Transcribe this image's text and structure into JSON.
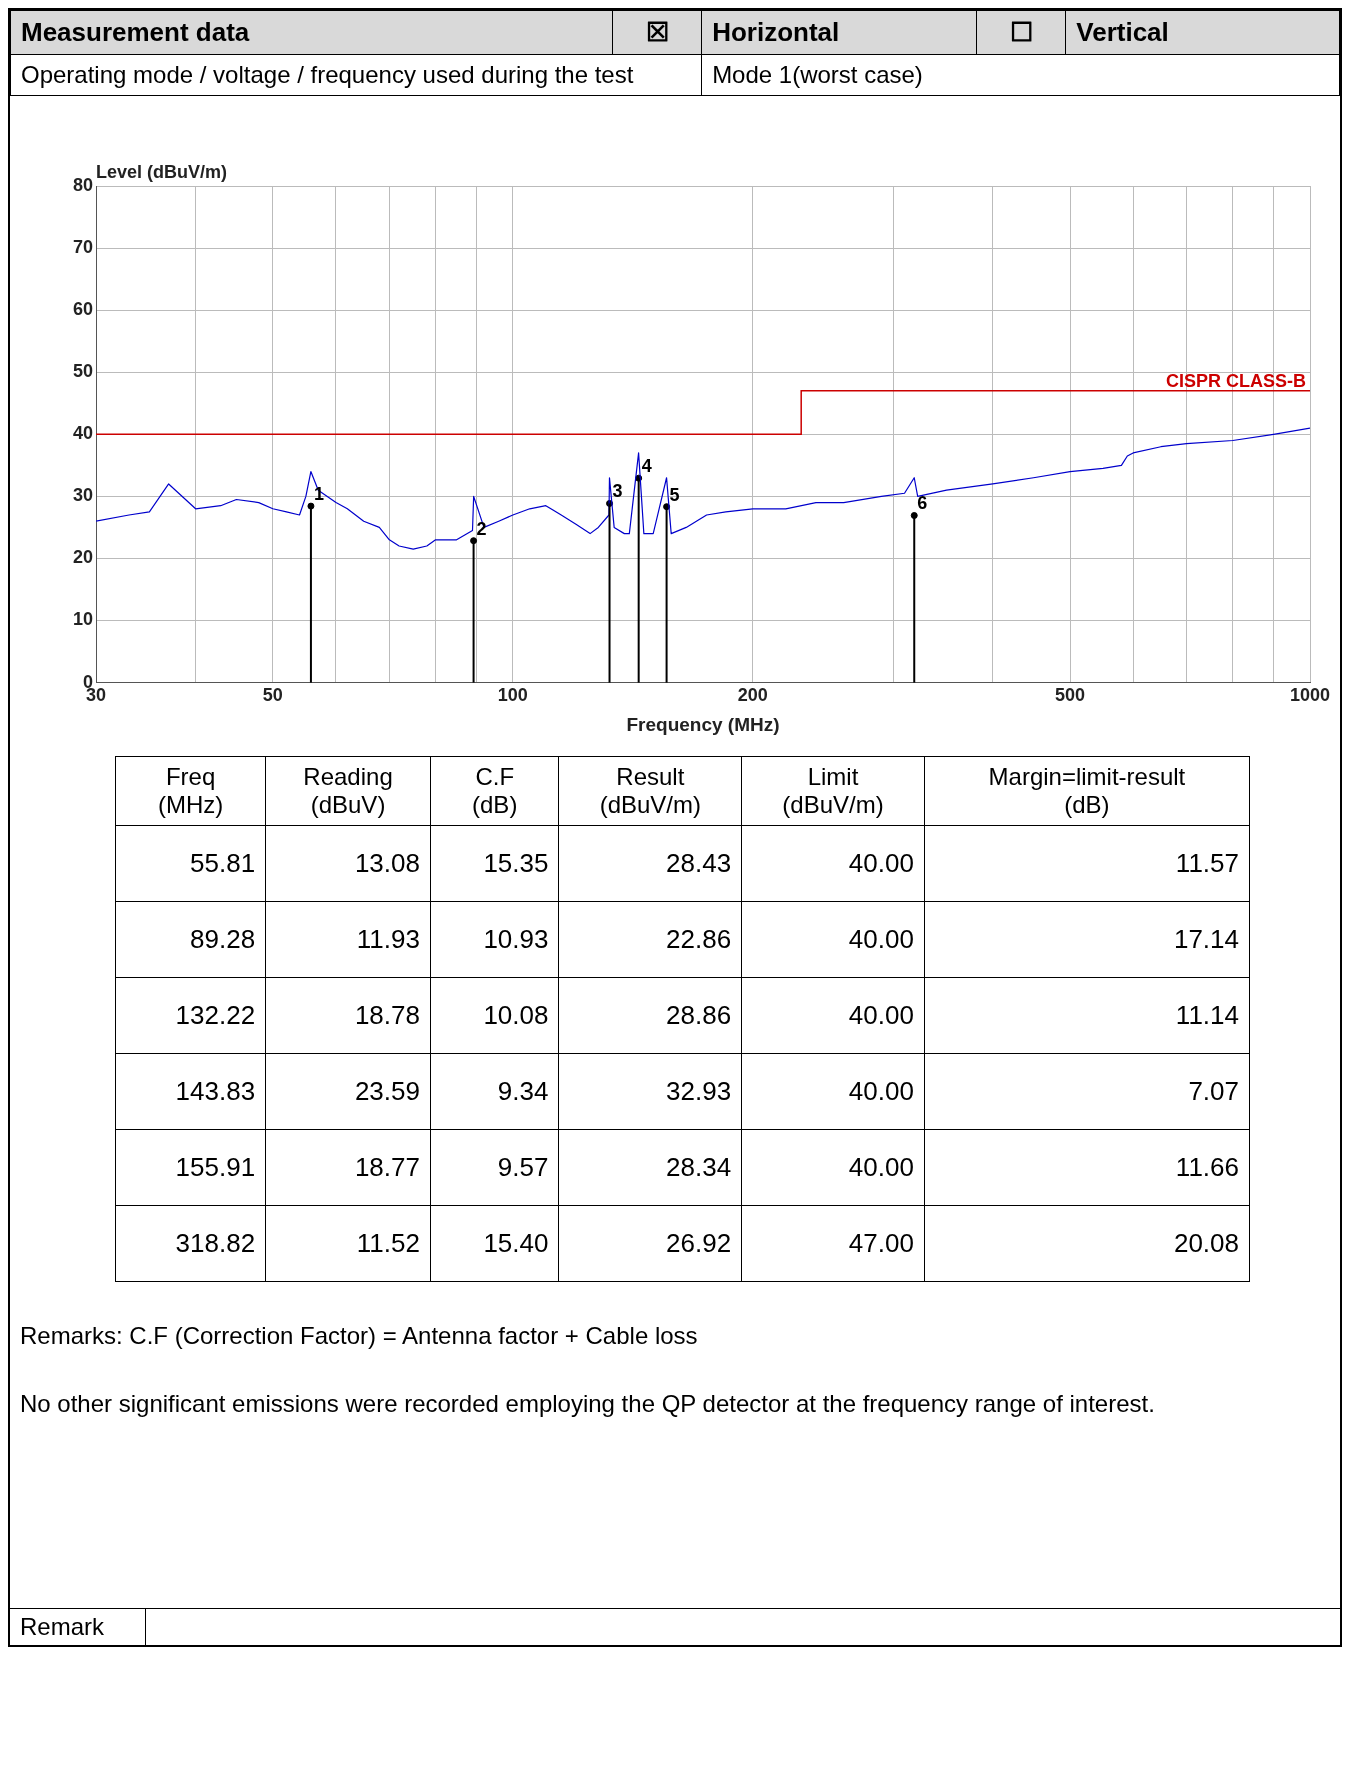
{
  "chart_data": [
    {
      "type": "other",
      "title": "Measurement data",
      "annotations": [
        "☒",
        "Horizontal",
        "☐",
        "Vertical",
        "Operating mode / voltage / frequency used during the test",
        "Mode 1(worst case)"
      ]
    },
    {
      "type": "line",
      "xlabel": "Frequency (MHz)",
      "ylabel": "Level (dBuV/m)",
      "log": "x",
      "grid": true,
      "legend": false,
      "marker": "none",
      "line_style": "solid",
      "xlim": [
        30,
        1000
      ],
      "ylim": [
        0,
        80
      ],
      "xticks": [
        30,
        {
          "value": 40,
          "label": null
        },
        50,
        {
          "value": 60,
          "label": null
        },
        {
          "value": 70,
          "label": null
        },
        {
          "value": 80,
          "label": null
        },
        {
          "value": 90,
          "label": null
        },
        100,
        200,
        {
          "value": 300,
          "label": null
        },
        {
          "value": 400,
          "label": null
        },
        500,
        {
          "value": 600,
          "label": null
        },
        {
          "value": 700,
          "label": null
        },
        {
          "value": 800,
          "label": null
        },
        {
          "value": 900,
          "label": null
        },
        1000
      ],
      "yticks": [
        0,
        10,
        20,
        30,
        40,
        50,
        60,
        70,
        80
      ],
      "series": [
        {
          "type": "line",
          "color": "#0000cc",
          "x": [
            30,
            33,
            35,
            37,
            40,
            43,
            45,
            48,
            50,
            52,
            54,
            55,
            55.8,
            57,
            60,
            62,
            65,
            68,
            70,
            72,
            75,
            78,
            80,
            85,
            89,
            89.3,
            92,
            96,
            100,
            105,
            110,
            115,
            120,
            125,
            128,
            132,
            132.2,
            134,
            138,
            140,
            143.8,
            146,
            150,
            155.9,
            158,
            165,
            175,
            185,
            200,
            220,
            240,
            260,
            290,
            310,
            318.8,
            322,
            350,
            400,
            450,
            500,
            550,
            580,
            590,
            600,
            650,
            700,
            800,
            900,
            1000
          ],
          "values": [
            26,
            27,
            27.5,
            32,
            28,
            28.5,
            29.5,
            29,
            28,
            27.5,
            27,
            30,
            34,
            31,
            29,
            28,
            26,
            25,
            23,
            22,
            21.5,
            22,
            23,
            23,
            24.5,
            30,
            25,
            26,
            27,
            28,
            28.5,
            27,
            25.5,
            24,
            25,
            27,
            33,
            25,
            24,
            24,
            37,
            24,
            24,
            33,
            24,
            25,
            27,
            27.5,
            28,
            28,
            29,
            29,
            30,
            30.5,
            33,
            30,
            31,
            32,
            33,
            34,
            34.5,
            35,
            36.5,
            37,
            38,
            38.5,
            39,
            40,
            41
          ]
        },
        {
          "type": "step",
          "name": "CISPR CLASS-B",
          "color": "#cc0000",
          "x": [
            30,
            230,
            1000
          ],
          "values": [
            40,
            47,
            47
          ]
        },
        {
          "type": "lollipop",
          "marker": "circle",
          "color": "#000000",
          "x": [
            55.81,
            89.28,
            132.22,
            143.83,
            155.91,
            318.82
          ],
          "values": [
            28.43,
            22.86,
            28.86,
            32.93,
            28.34,
            26.92
          ]
        }
      ],
      "annotations": [
        {
          "text": "1",
          "x": 55.81,
          "y": 28.43
        },
        {
          "text": "2",
          "x": 89.28,
          "y": 22.86
        },
        {
          "text": "3",
          "x": 132.22,
          "y": 28.86
        },
        {
          "text": "4",
          "x": 143.83,
          "y": 32.93
        },
        {
          "text": "5",
          "x": 155.91,
          "y": 28.34
        },
        {
          "text": "6",
          "x": 318.82,
          "y": 26.92
        }
      ]
    },
    {
      "type": "other",
      "categories": [
        "Freq\n(MHz)",
        "Reading\n(dBuV)",
        "C.F\n(dB)",
        "Result\n(dBuV/m)",
        "Limit\n(dBuV/m)",
        "Margin=limit-result\n(dB)"
      ],
      "cell_labels": [
        [
          "55.81",
          "13.08",
          "15.35",
          "28.43",
          "40.00",
          "11.57"
        ],
        [
          "89.28",
          "11.93",
          "10.93",
          "22.86",
          "40.00",
          "17.14"
        ],
        [
          "132.22",
          "18.78",
          "10.08",
          "28.86",
          "40.00",
          "11.14"
        ],
        [
          "143.83",
          "23.59",
          "9.34",
          "32.93",
          "40.00",
          "7.07"
        ],
        [
          "155.91",
          "18.77",
          "9.57",
          "28.34",
          "40.00",
          "11.66"
        ],
        [
          "318.82",
          "11.52",
          "15.40",
          "26.92",
          "47.00",
          "20.08"
        ]
      ],
      "annotations": [
        "Remarks:  C.F (Correction Factor) = Antenna factor + Cable loss",
        "No other significant emissions were recorded employing the QP detector at the frequency range of interest.",
        "Remark"
      ]
    }
  ]
}
